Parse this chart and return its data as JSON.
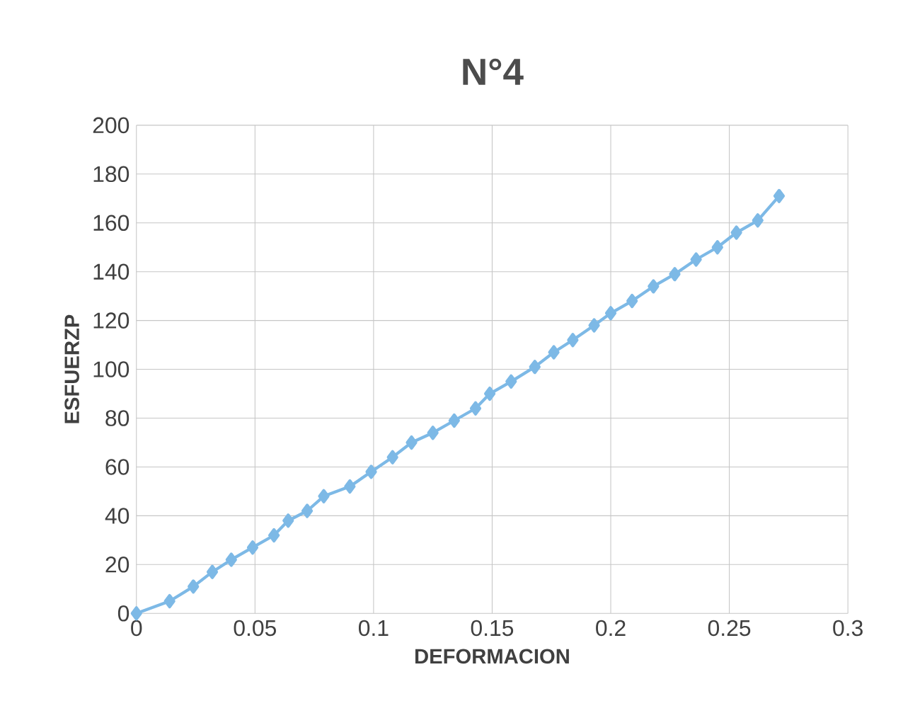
{
  "chart_data": {
    "type": "line",
    "title": "N°4",
    "xlabel": "DEFORMACION",
    "ylabel": "ESFUERZP",
    "x": [
      0,
      0.014,
      0.024,
      0.032,
      0.04,
      0.049,
      0.058,
      0.064,
      0.072,
      0.079,
      0.09,
      0.099,
      0.108,
      0.116,
      0.125,
      0.134,
      0.143,
      0.149,
      0.158,
      0.168,
      0.176,
      0.184,
      0.193,
      0.2,
      0.209,
      0.218,
      0.227,
      0.236,
      0.245,
      0.253,
      0.262,
      0.271
    ],
    "values": [
      0,
      5,
      11,
      17,
      22,
      27,
      32,
      38,
      42,
      48,
      52,
      58,
      64,
      70,
      74,
      79,
      84,
      90,
      95,
      101,
      107,
      112,
      118,
      123,
      128,
      134,
      139,
      145,
      150,
      156,
      161,
      171
    ],
    "color": "#7db9e6",
    "marker": "diamond",
    "grid": true,
    "xlim": [
      0,
      0.3
    ],
    "xticks": [
      0,
      0.05,
      0.1,
      0.15,
      0.2,
      0.25,
      0.3
    ],
    "ylim": [
      0,
      200
    ],
    "yticks": [
      0,
      20,
      40,
      60,
      80,
      100,
      120,
      140,
      160,
      180,
      200
    ]
  }
}
